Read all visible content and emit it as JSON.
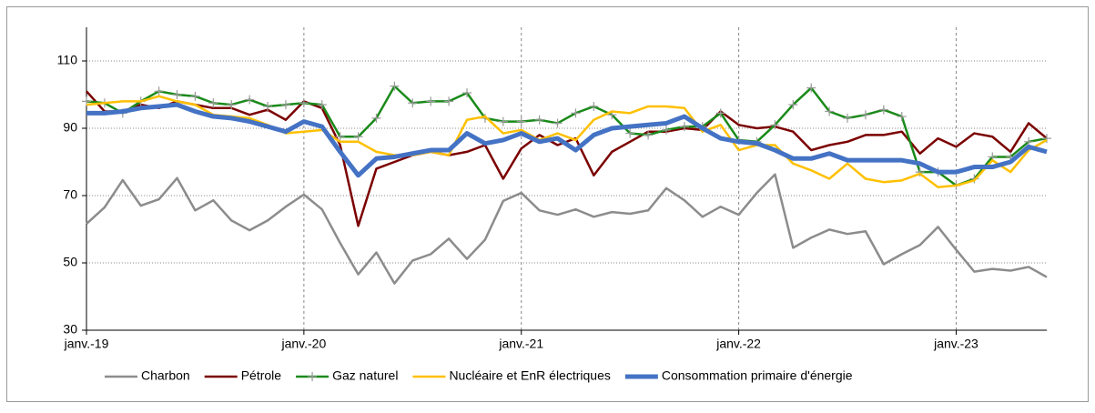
{
  "chart_data": {
    "type": "line",
    "categories": [
      "janv.-19",
      null,
      null,
      null,
      null,
      null,
      null,
      null,
      null,
      null,
      null,
      null,
      "janv.-20",
      null,
      null,
      null,
      null,
      null,
      null,
      null,
      null,
      null,
      null,
      null,
      "janv.-21",
      null,
      null,
      null,
      null,
      null,
      null,
      null,
      null,
      null,
      null,
      null,
      "janv.-22",
      null,
      null,
      null,
      null,
      null,
      null,
      null,
      null,
      null,
      null,
      null,
      "janv.-23",
      null,
      null,
      null,
      null,
      null
    ],
    "series": [
      {
        "name": "Charbon",
        "color": "#8c8c8c",
        "width": 2.5,
        "values": [
          61.6,
          66.5,
          74.6,
          67,
          68.9,
          75.2,
          65.6,
          68.6,
          62.6,
          59.7,
          62.6,
          66.7,
          70.3,
          65.9,
          55.9,
          46.6,
          53.1,
          43.9,
          50.7,
          52.6,
          57.2,
          51.2,
          56.9,
          68.4,
          70.8,
          65.6,
          64.3,
          65.9,
          63.7,
          65.1,
          64.6,
          65.6,
          72.2,
          68.6,
          63.7,
          66.7,
          64.3,
          70.8,
          76.3,
          54.5,
          57.5,
          59.9,
          58.6,
          59.4,
          49.6,
          52.6,
          55.3,
          60.7,
          53.9,
          47.4,
          48.2,
          47.7,
          48.8,
          45.8
        ]
      },
      {
        "name": "Pétrole",
        "color": "#7b0000",
        "width": 2.5,
        "values": [
          101,
          95,
          95,
          97,
          96,
          98,
          97,
          96,
          96,
          94,
          95.5,
          92.5,
          98,
          96,
          85,
          61,
          78,
          80,
          82,
          83,
          82,
          83,
          85,
          75,
          84,
          88,
          85,
          87,
          76,
          83,
          86,
          89,
          89,
          90,
          89.5,
          95,
          91,
          90,
          90.5,
          89,
          83.5,
          85,
          86,
          88,
          88,
          89,
          82.5,
          87,
          84.5,
          88.5,
          87.5,
          83,
          91.5,
          87
        ]
      },
      {
        "name": "Gaz naturel",
        "color": "#1a8a1a",
        "width": 2.5,
        "marker": "+",
        "values": [
          98,
          97.5,
          94.5,
          98,
          101,
          100,
          99.5,
          97.5,
          97,
          98.5,
          96.5,
          97,
          97.5,
          97,
          87.5,
          87.5,
          93,
          102.5,
          97.5,
          98,
          98,
          100.5,
          93,
          92,
          92,
          92.5,
          91.5,
          94.5,
          96.5,
          94,
          88.5,
          88,
          89.5,
          90.5,
          90.5,
          94.5,
          86.5,
          86,
          91,
          97,
          102,
          95,
          93,
          94,
          95.5,
          93.5,
          77,
          77,
          73,
          75,
          81.5,
          81.5,
          86,
          87
        ]
      },
      {
        "name": "Nucléaire et EnR électriques",
        "color": "#ffc000",
        "width": 2.5,
        "values": [
          97,
          97.5,
          98,
          98,
          99.5,
          98,
          97,
          94,
          93.5,
          93,
          91,
          88.5,
          89,
          89.5,
          86,
          86,
          83,
          82,
          82,
          83,
          82,
          92.5,
          93.5,
          88.5,
          89.5,
          86.5,
          88.5,
          86.5,
          92.5,
          95,
          94.5,
          96.5,
          96.5,
          96,
          89,
          91,
          83.5,
          85,
          85,
          79.5,
          77.5,
          75,
          79.5,
          75,
          74,
          74.5,
          76.5,
          72.5,
          73,
          74.5,
          80.5,
          77,
          83.5,
          86.5
        ]
      },
      {
        "name": "Consommation primaire d'énergie",
        "color": "#4472c4",
        "width": 5,
        "values": [
          94.5,
          94.5,
          95,
          96,
          96.5,
          97,
          95,
          93.5,
          93,
          92,
          90.5,
          89,
          92,
          90.5,
          83,
          76,
          81,
          81.5,
          82.5,
          83.5,
          83.5,
          88.5,
          85.5,
          86.5,
          88.5,
          86,
          87,
          83.5,
          88,
          90,
          90.5,
          91,
          91.5,
          93.5,
          90,
          87,
          86,
          85.5,
          83.5,
          81,
          81,
          82.5,
          80.5,
          80.5,
          80.5,
          80.5,
          79.5,
          77,
          77,
          78.5,
          78.5,
          80,
          84.5,
          83
        ]
      }
    ],
    "ylim": [
      30,
      120
    ],
    "yticks": [
      30,
      50,
      70,
      90,
      110
    ],
    "grid": true,
    "legend": "bottom"
  }
}
